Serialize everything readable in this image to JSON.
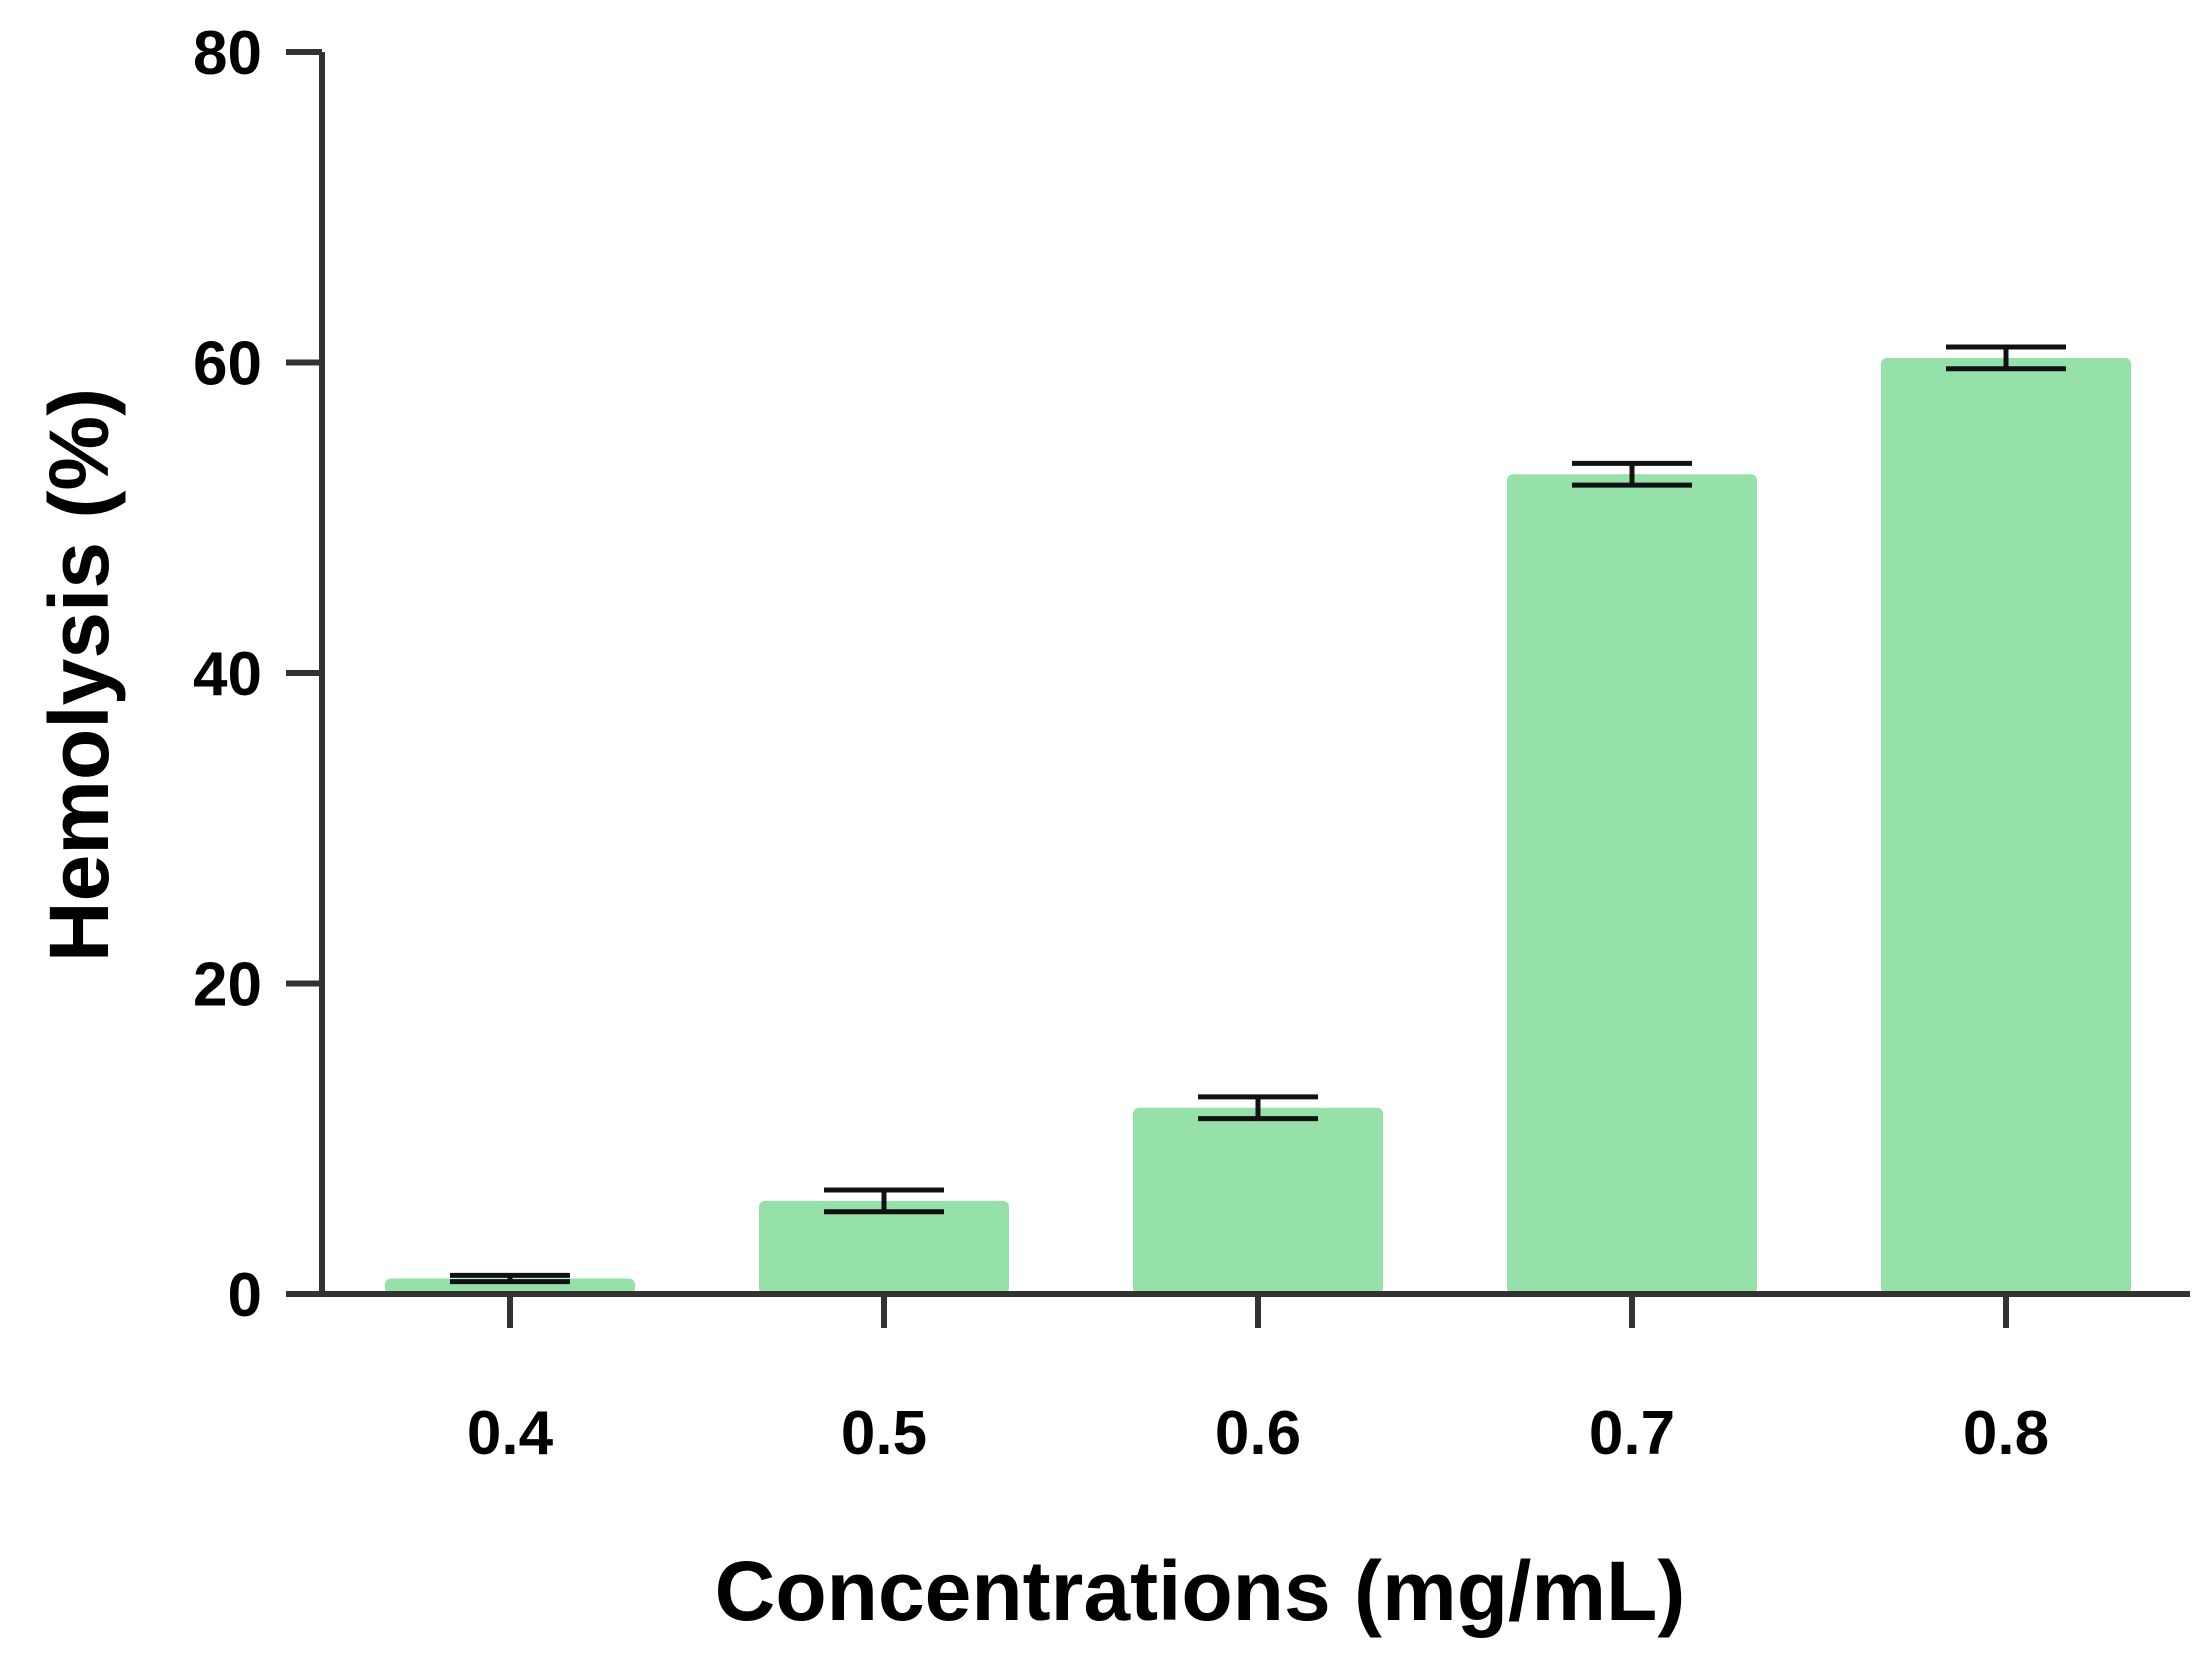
{
  "chart_data": {
    "type": "bar",
    "title": "",
    "xlabel": "Concentrations (mg/mL)",
    "ylabel": "Hemolysis (%)",
    "categories": [
      "0.4",
      "0.5",
      "0.6",
      "0.7",
      "0.8"
    ],
    "values": [
      1.0,
      6.0,
      12.0,
      52.8,
      60.3
    ],
    "errors": [
      0.2,
      0.7,
      0.7,
      0.7,
      0.7
    ],
    "ylim": [
      0,
      80
    ],
    "yticks": [
      0,
      20,
      40,
      60,
      80
    ],
    "ytick_labels": [
      "0",
      "20",
      "40",
      "60",
      "80"
    ],
    "grid": false,
    "legend": null,
    "colors": {
      "bar": "#96e0a9",
      "axis": "#333333",
      "error_bar": "#111111",
      "text": "#000000"
    }
  }
}
